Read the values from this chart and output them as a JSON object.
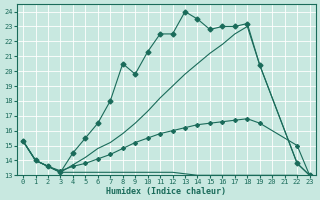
{
  "xlabel": "Humidex (Indice chaleur)",
  "ylabel": "",
  "background_color": "#c8e8e0",
  "grid_color": "#b8d8d0",
  "line_color": "#1a6b5a",
  "xlim": [
    -0.5,
    23.5
  ],
  "ylim": [
    13,
    24.5
  ],
  "xticks": [
    0,
    1,
    2,
    3,
    4,
    5,
    6,
    7,
    8,
    9,
    10,
    11,
    12,
    13,
    14,
    15,
    16,
    17,
    18,
    19,
    20,
    21,
    22,
    23
  ],
  "yticks": [
    13,
    14,
    15,
    16,
    17,
    18,
    19,
    20,
    21,
    22,
    23,
    24
  ],
  "lines": [
    {
      "x": [
        0,
        1,
        2,
        3,
        4,
        5,
        6,
        7,
        8,
        9,
        10,
        11,
        12,
        13,
        14,
        15,
        16,
        17,
        18,
        19,
        22,
        23
      ],
      "y": [
        15.3,
        14.0,
        13.6,
        13.2,
        14.5,
        15.5,
        16.5,
        18.0,
        20.5,
        19.8,
        21.3,
        22.5,
        22.5,
        24.0,
        23.5,
        22.8,
        23.0,
        23.0,
        23.2,
        20.4,
        13.8,
        13.0
      ],
      "marker": "D",
      "markersize": 2.5
    },
    {
      "x": [
        0,
        1,
        2,
        3,
        5,
        6,
        7,
        8,
        9,
        10,
        11,
        12,
        13,
        14,
        15,
        16,
        17,
        18,
        19,
        22,
        23
      ],
      "y": [
        15.3,
        14.0,
        13.6,
        13.2,
        14.2,
        14.8,
        15.2,
        15.8,
        16.5,
        17.3,
        18.2,
        19.0,
        19.8,
        20.5,
        21.2,
        21.8,
        22.5,
        23.0,
        20.4,
        13.8,
        13.0
      ],
      "marker": null,
      "markersize": 0
    },
    {
      "x": [
        0,
        1,
        2,
        3,
        4,
        5,
        6,
        7,
        8,
        9,
        10,
        11,
        12,
        13,
        14,
        15,
        16,
        17,
        18,
        19,
        22,
        23
      ],
      "y": [
        15.3,
        14.0,
        13.6,
        13.3,
        13.6,
        13.8,
        14.1,
        14.4,
        14.8,
        15.2,
        15.5,
        15.8,
        16.0,
        16.2,
        16.4,
        16.5,
        16.6,
        16.7,
        16.8,
        16.5,
        15.0,
        13.0
      ],
      "marker": "D",
      "markersize": 2.0
    },
    {
      "x": [
        0,
        1,
        2,
        3,
        4,
        5,
        6,
        7,
        8,
        9,
        10,
        11,
        12,
        13,
        14,
        15,
        16,
        17,
        18,
        19,
        20,
        21,
        22,
        23
      ],
      "y": [
        15.3,
        14.0,
        13.6,
        13.2,
        13.2,
        13.2,
        13.2,
        13.2,
        13.2,
        13.2,
        13.2,
        13.2,
        13.2,
        13.1,
        13.0,
        13.0,
        13.0,
        13.0,
        13.0,
        13.0,
        13.0,
        13.0,
        13.0,
        12.8
      ],
      "marker": null,
      "markersize": 0
    }
  ]
}
